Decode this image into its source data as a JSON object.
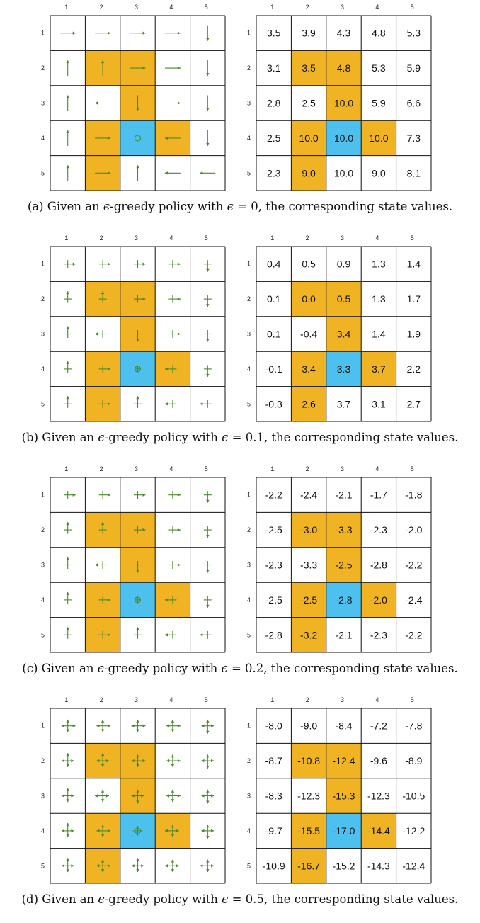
{
  "colors": {
    "target": "#f0b324",
    "forbidden": "#4ec0ee",
    "arrow": "#4a8a2a",
    "grid": "#111111"
  },
  "panels": [
    {
      "caption": {
        "prefix": "(a) Given an ",
        "eps": "ϵ",
        "mid": "-greedy policy with ",
        "eps2": "ϵ",
        "value": " = 0",
        "suffix": ", the corresponding state values."
      },
      "col_labels": [
        "1",
        "2",
        "3",
        "4",
        "5"
      ],
      "row_labels": [
        "1",
        "2",
        "3",
        "4",
        "5"
      ],
      "cell_types": [
        [
          "n",
          "n",
          "n",
          "n",
          "n"
        ],
        [
          "n",
          "o",
          "o",
          "n",
          "n"
        ],
        [
          "n",
          "n",
          "o",
          "n",
          "n"
        ],
        [
          "n",
          "o",
          "b",
          "o",
          "n"
        ],
        [
          "n",
          "o",
          "n",
          "n",
          "n"
        ]
      ],
      "policy_icons": [
        [
          "right-arrow-icon",
          "right-arrow-icon",
          "right-arrow-icon",
          "right-arrow-icon",
          "down-arrow-icon"
        ],
        [
          "up-arrow-icon",
          "up-arrow-icon",
          "right-arrow-icon",
          "right-arrow-icon",
          "down-arrow-icon"
        ],
        [
          "up-arrow-icon",
          "left-arrow-icon",
          "down-arrow-icon",
          "right-arrow-icon",
          "down-arrow-icon"
        ],
        [
          "up-arrow-icon",
          "right-arrow-icon",
          "stay-circle-icon",
          "left-arrow-icon",
          "down-arrow-icon"
        ],
        [
          "up-arrow-icon",
          "right-arrow-icon",
          "up-arrow-icon",
          "left-arrow-icon",
          "left-arrow-icon"
        ]
      ],
      "values": [
        [
          "3.5",
          "3.9",
          "4.3",
          "4.8",
          "5.3"
        ],
        [
          "3.1",
          "3.5",
          "4.8",
          "5.3",
          "5.9"
        ],
        [
          "2.8",
          "2.5",
          "10.0",
          "5.9",
          "6.6"
        ],
        [
          "2.5",
          "10.0",
          "10.0",
          "10.0",
          "7.3"
        ],
        [
          "2.3",
          "9.0",
          "10.0",
          "9.0",
          "8.1"
        ]
      ]
    },
    {
      "caption": {
        "prefix": "(b) Given an ",
        "eps": "ϵ",
        "mid": "-greedy policy with ",
        "eps2": "ϵ",
        "value": " = 0.1",
        "suffix": ", the corresponding state values."
      },
      "col_labels": [
        "1",
        "2",
        "3",
        "4",
        "5"
      ],
      "row_labels": [
        "1",
        "2",
        "3",
        "4",
        "5"
      ],
      "cell_types": [
        [
          "n",
          "n",
          "n",
          "n",
          "n"
        ],
        [
          "n",
          "o",
          "o",
          "n",
          "n"
        ],
        [
          "n",
          "n",
          "o",
          "n",
          "n"
        ],
        [
          "n",
          "o",
          "b",
          "o",
          "n"
        ],
        [
          "n",
          "o",
          "n",
          "n",
          "n"
        ]
      ],
      "policy_icons": [
        [
          "right-arrow-icon",
          "right-arrow-icon",
          "right-arrow-icon",
          "right-arrow-icon",
          "down-arrow-icon"
        ],
        [
          "up-arrow-icon",
          "up-arrow-icon",
          "right-arrow-icon",
          "right-arrow-icon",
          "down-arrow-icon"
        ],
        [
          "up-arrow-icon",
          "left-arrow-icon",
          "down-arrow-icon",
          "right-arrow-icon",
          "down-arrow-icon"
        ],
        [
          "up-arrow-icon",
          "right-arrow-icon",
          "stay-circle-icon",
          "left-arrow-icon",
          "down-arrow-icon"
        ],
        [
          "up-arrow-icon",
          "right-arrow-icon",
          "up-arrow-icon",
          "left-arrow-icon",
          "left-arrow-icon"
        ]
      ],
      "values": [
        [
          "0.4",
          "0.5",
          "0.9",
          "1.3",
          "1.4"
        ],
        [
          "0.1",
          "0.0",
          "0.5",
          "1.3",
          "1.7"
        ],
        [
          "0.1",
          "-0.4",
          "3.4",
          "1.4",
          "1.9"
        ],
        [
          "-0.1",
          "3.4",
          "3.3",
          "3.7",
          "2.2"
        ],
        [
          "-0.3",
          "2.6",
          "3.7",
          "3.1",
          "2.7"
        ]
      ]
    },
    {
      "caption": {
        "prefix": "(c) Given an ",
        "eps": "ϵ",
        "mid": "-greedy policy with ",
        "eps2": "ϵ",
        "value": " = 0.2",
        "suffix": ", the corresponding state values."
      },
      "col_labels": [
        "1",
        "2",
        "3",
        "4",
        "5"
      ],
      "row_labels": [
        "1",
        "2",
        "3",
        "4",
        "5"
      ],
      "cell_types": [
        [
          "n",
          "n",
          "n",
          "n",
          "n"
        ],
        [
          "n",
          "o",
          "o",
          "n",
          "n"
        ],
        [
          "n",
          "n",
          "o",
          "n",
          "n"
        ],
        [
          "n",
          "o",
          "b",
          "o",
          "n"
        ],
        [
          "n",
          "o",
          "n",
          "n",
          "n"
        ]
      ],
      "policy_icons": [
        [
          "right-arrow-icon",
          "right-arrow-icon",
          "right-arrow-icon",
          "right-arrow-icon",
          "down-arrow-icon"
        ],
        [
          "up-arrow-icon",
          "up-arrow-icon",
          "right-arrow-icon",
          "right-arrow-icon",
          "down-arrow-icon"
        ],
        [
          "up-arrow-icon",
          "left-arrow-icon",
          "down-arrow-icon",
          "right-arrow-icon",
          "down-arrow-icon"
        ],
        [
          "up-arrow-icon",
          "right-arrow-icon",
          "stay-circle-icon",
          "left-arrow-icon",
          "down-arrow-icon"
        ],
        [
          "up-arrow-icon",
          "right-arrow-icon",
          "up-arrow-icon",
          "left-arrow-icon",
          "left-arrow-icon"
        ]
      ],
      "values": [
        [
          "-2.2",
          "-2.4",
          "-2.1",
          "-1.7",
          "-1.8"
        ],
        [
          "-2.5",
          "-3.0",
          "-3.3",
          "-2.3",
          "-2.0"
        ],
        [
          "-2.3",
          "-3.3",
          "-2.5",
          "-2.8",
          "-2.2"
        ],
        [
          "-2.5",
          "-2.5",
          "-2.8",
          "-2.0",
          "-2.4"
        ],
        [
          "-2.8",
          "-3.2",
          "-2.1",
          "-2.3",
          "-2.2"
        ]
      ]
    },
    {
      "caption": {
        "prefix": "(d) Given an ",
        "eps": "ϵ",
        "mid": "-greedy policy with ",
        "eps2": "ϵ",
        "value": " = 0.5",
        "suffix": ", the corresponding state values."
      },
      "col_labels": [
        "1",
        "2",
        "3",
        "4",
        "5"
      ],
      "row_labels": [
        "1",
        "2",
        "3",
        "4",
        "5"
      ],
      "cell_types": [
        [
          "n",
          "n",
          "n",
          "n",
          "n"
        ],
        [
          "n",
          "o",
          "o",
          "n",
          "n"
        ],
        [
          "n",
          "n",
          "o",
          "n",
          "n"
        ],
        [
          "n",
          "o",
          "b",
          "o",
          "n"
        ],
        [
          "n",
          "o",
          "n",
          "n",
          "n"
        ]
      ],
      "policy_icons": [
        [
          "right-arrow-icon",
          "right-arrow-icon",
          "right-arrow-icon",
          "right-arrow-icon",
          "down-arrow-icon"
        ],
        [
          "up-arrow-icon",
          "up-arrow-icon",
          "right-arrow-icon",
          "right-arrow-icon",
          "down-arrow-icon"
        ],
        [
          "up-arrow-icon",
          "left-arrow-icon",
          "down-arrow-icon",
          "right-arrow-icon",
          "down-arrow-icon"
        ],
        [
          "up-arrow-icon",
          "right-arrow-icon",
          "stay-circle-icon",
          "left-arrow-icon",
          "down-arrow-icon"
        ],
        [
          "up-arrow-icon",
          "right-arrow-icon",
          "up-arrow-icon",
          "left-arrow-icon",
          "left-arrow-icon"
        ]
      ],
      "values": [
        [
          "-8.0",
          "-9.0",
          "-8.4",
          "-7.2",
          "-7.8"
        ],
        [
          "-8.7",
          "-10.8",
          "-12.4",
          "-9.6",
          "-8.9"
        ],
        [
          "-8.3",
          "-12.3",
          "-15.3",
          "-12.3",
          "-10.5"
        ],
        [
          "-9.7",
          "-15.5",
          "-17.0",
          "-14.4",
          "-12.2"
        ],
        [
          "-10.9",
          "-16.7",
          "-15.2",
          "-14.3",
          "-12.4"
        ]
      ]
    }
  ]
}
